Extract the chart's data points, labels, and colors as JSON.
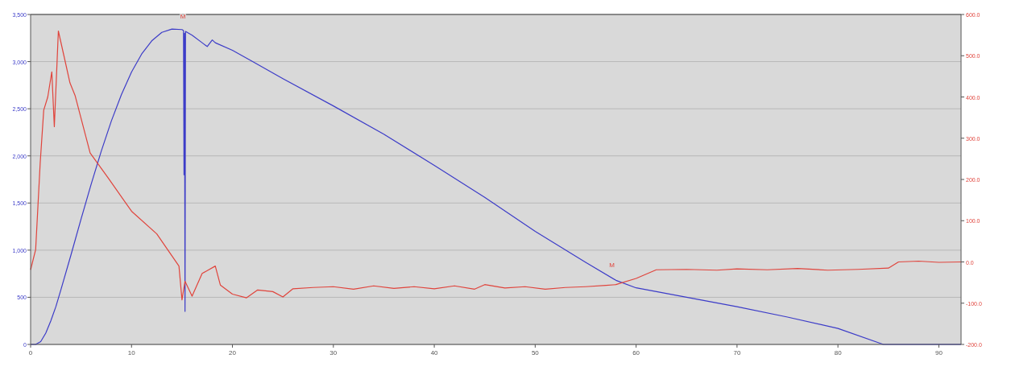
{
  "chart_data": {
    "type": "line",
    "xlim": [
      0,
      92.2
    ],
    "xticks": [
      0,
      10,
      20,
      30,
      40,
      50,
      60,
      70,
      80,
      90
    ],
    "ylim": [
      0,
      3500
    ],
    "yticks": [
      {
        "value": 0,
        "label": "0"
      },
      {
        "value": 500,
        "label": "500"
      },
      {
        "value": 1000,
        "label": "1,000"
      },
      {
        "value": 1500,
        "label": "1,500"
      },
      {
        "value": 2000,
        "label": "2,000"
      },
      {
        "value": 2500,
        "label": "2,500"
      },
      {
        "value": 3000,
        "label": "3,000"
      },
      {
        "value": 3500,
        "label": "3,500"
      }
    ],
    "y2lim": [
      -200,
      600
    ],
    "y2ticks": [
      {
        "value": -200,
        "label": "-200.0"
      },
      {
        "value": -100,
        "label": "-100.0"
      },
      {
        "value": 0,
        "label": "0.0"
      },
      {
        "value": 100,
        "label": "100.0"
      },
      {
        "value": 200,
        "label": "200.0"
      },
      {
        "value": 300,
        "label": "300.0"
      },
      {
        "value": 400,
        "label": "400.0"
      },
      {
        "value": 500,
        "label": "500.0"
      },
      {
        "value": 600,
        "label": "600.0"
      }
    ],
    "grid": "y",
    "marker": "none",
    "line_style": "solid",
    "annotations": [
      {
        "text": "M",
        "x": 57.6,
        "y": 700
      },
      {
        "text": "M",
        "x": 15.1,
        "y": 3335
      }
    ],
    "series": [
      {
        "color": "#3c3cc8",
        "x": [
          0,
          0.5,
          1,
          1.5,
          2,
          2.5,
          3,
          4,
          5,
          6,
          7,
          8,
          9,
          10,
          11,
          12,
          13,
          14,
          15,
          15.15,
          15.2,
          15.25,
          15.3,
          15.35,
          16,
          17,
          17.5,
          18,
          18.3,
          20,
          22,
          25,
          30,
          35,
          40,
          45,
          50,
          55,
          58,
          60,
          65,
          70,
          75,
          80,
          84.5,
          92.2
        ],
        "values": [
          0,
          0,
          30,
          120,
          250,
          400,
          580,
          950,
          1330,
          1700,
          2050,
          2370,
          2650,
          2890,
          3080,
          3220,
          3310,
          3345,
          3340,
          3330,
          1800,
          3300,
          350,
          3320,
          3280,
          3200,
          3160,
          3230,
          3200,
          3120,
          3000,
          2820,
          2530,
          2230,
          1900,
          1560,
          1200,
          870,
          680,
          600,
          500,
          400,
          290,
          170,
          0,
          0
        ]
      },
      {
        "color": "#e0443c",
        "axis": "y2",
        "x": [
          0,
          0.5,
          0.95,
          1.3,
          1.7,
          2.1,
          2.35,
          2.75,
          3.3,
          3.9,
          4.4,
          5.9,
          7.7,
          10,
          12.5,
          14.7,
          15,
          15.3,
          16,
          17,
          18.3,
          18.8,
          20,
          21.4,
          22.5,
          24,
          25,
          26,
          28,
          30,
          32,
          34,
          36,
          38,
          40,
          42,
          44,
          45,
          47,
          49,
          51,
          53,
          55,
          57,
          58,
          60,
          62,
          65,
          68,
          70,
          73,
          76,
          79,
          82,
          85,
          86,
          88,
          90,
          92.2
        ],
        "values": [
          -19,
          30,
          240,
          368,
          400,
          461,
          328,
          560,
          500,
          434,
          404,
          264,
          203,
          123,
          68,
          -10,
          -92,
          -47,
          -83,
          -28,
          -10,
          -56,
          -78,
          -87,
          -68,
          -72,
          -85,
          -65,
          -62,
          -60,
          -66,
          -58,
          -64,
          -60,
          -65,
          -58,
          -66,
          -55,
          -63,
          -60,
          -66,
          -62,
          -60,
          -57,
          -55,
          -40,
          -19,
          -18,
          -20,
          -17,
          -19,
          -16,
          -20,
          -18,
          -15,
          0,
          2,
          -1,
          0
        ]
      }
    ]
  }
}
